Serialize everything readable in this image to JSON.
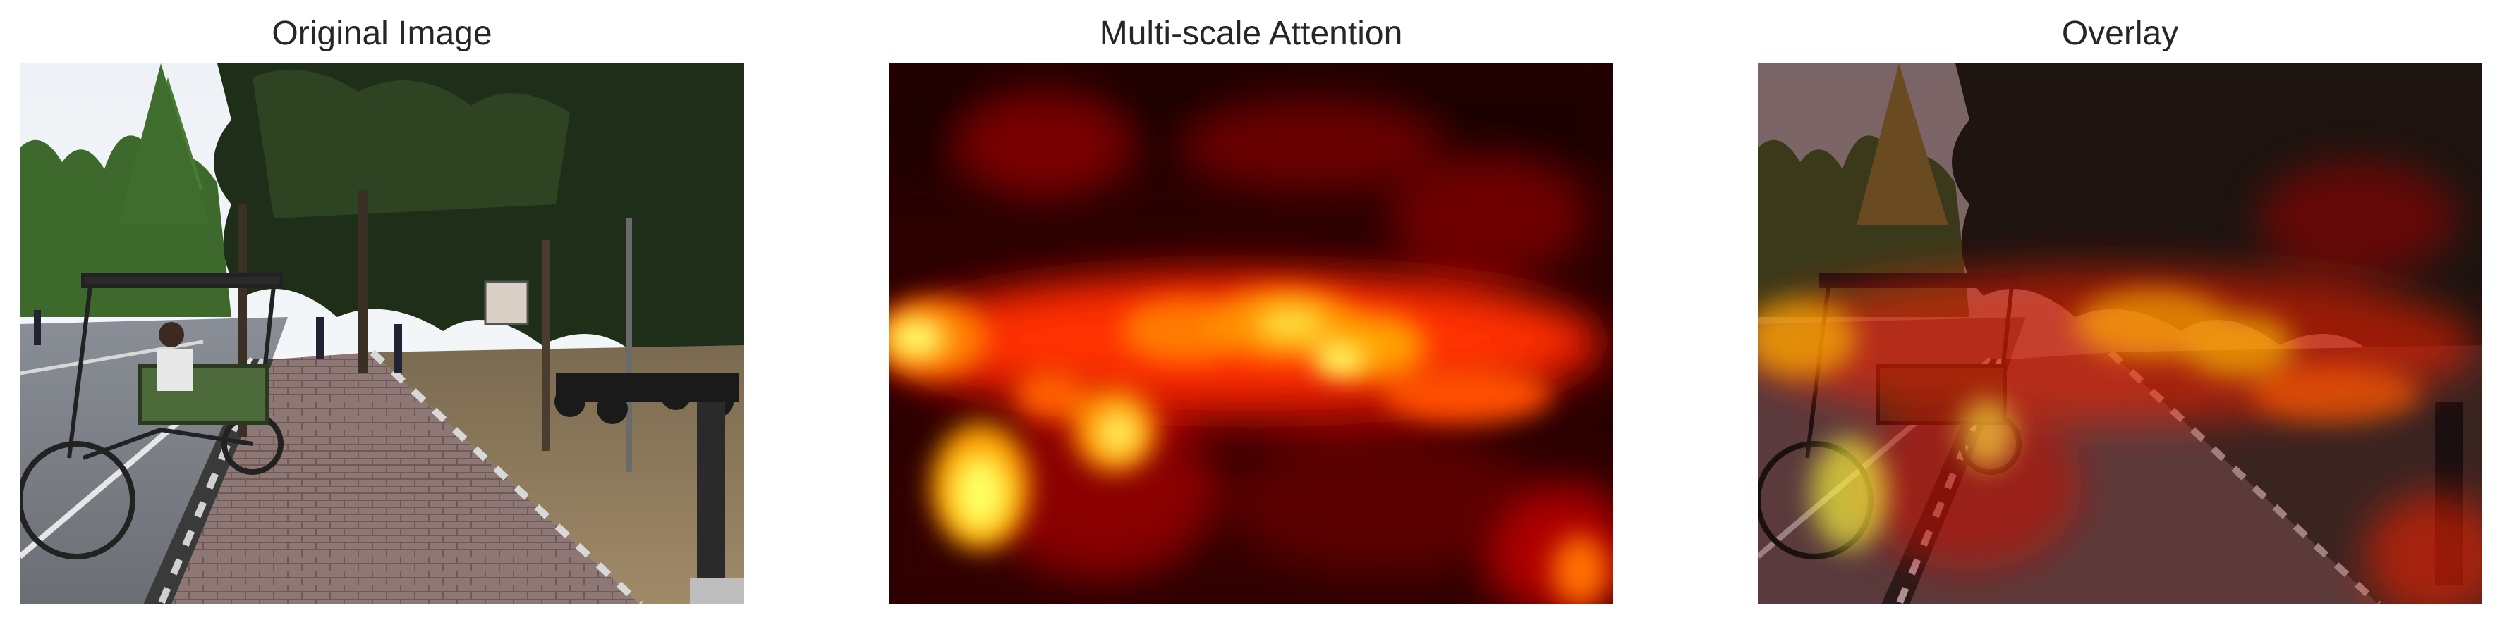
{
  "panels": [
    {
      "id": "original",
      "title": "Original Image"
    },
    {
      "id": "attention",
      "title": "Multi-scale Attention"
    },
    {
      "id": "overlay",
      "title": "Overlay"
    }
  ],
  "colormap": {
    "name": "hot",
    "stops": [
      "#000000",
      "#5a0000",
      "#b40000",
      "#ff2000",
      "#ff8000",
      "#ffd000",
      "#ffff80"
    ]
  }
}
